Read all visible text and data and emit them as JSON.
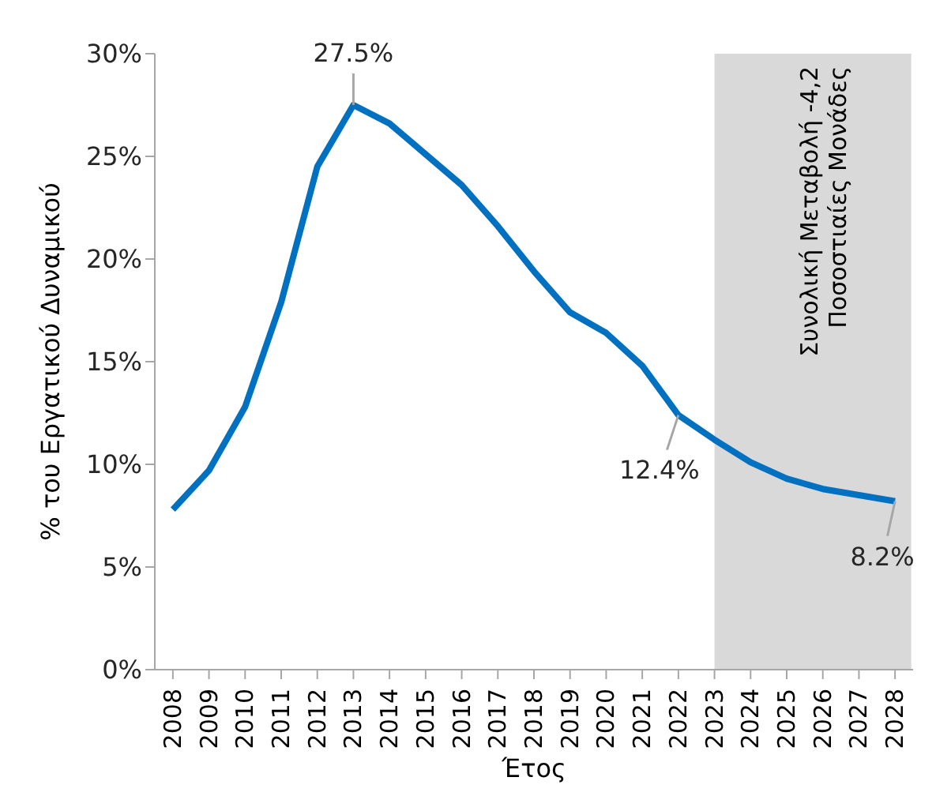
{
  "chart_data": {
    "type": "line",
    "xlabel": "Έτος",
    "ylabel": "% του Εργατικού Δυναμικού",
    "categories": [
      "2008",
      "2009",
      "2010",
      "2011",
      "2012",
      "2013",
      "2014",
      "2015",
      "2016",
      "2017",
      "2018",
      "2019",
      "2020",
      "2021",
      "2022",
      "2023",
      "2024",
      "2025",
      "2026",
      "2027",
      "2028"
    ],
    "series": [
      {
        "color": "#0070c0",
        "values": [
          7.8,
          9.7,
          12.8,
          17.9,
          24.5,
          27.5,
          26.6,
          25.1,
          23.6,
          21.6,
          19.4,
          17.4,
          16.4,
          14.8,
          12.4,
          11.2,
          10.1,
          9.3,
          8.8,
          8.5,
          8.2
        ],
        "value_labels": [
          null,
          null,
          null,
          null,
          null,
          "27.5%",
          null,
          null,
          null,
          null,
          null,
          null,
          null,
          null,
          "12.4%",
          null,
          null,
          null,
          null,
          null,
          "8.2%"
        ]
      }
    ],
    "ylim": [
      0,
      30
    ],
    "yticks": [
      {
        "value": 0,
        "label": "0%"
      },
      {
        "value": 5,
        "label": "5%"
      },
      {
        "value": 10,
        "label": "10%"
      },
      {
        "value": 15,
        "label": "15%"
      },
      {
        "value": 20,
        "label": "20%"
      },
      {
        "value": 25,
        "label": "25%"
      },
      {
        "value": 30,
        "label": "30%"
      }
    ],
    "bands": [
      {
        "axis": "x",
        "from": "2023",
        "to": "2028",
        "label": "Συνολική Μεταβολή -4,2\nΠοσοστιαίες Μονάδες",
        "color": "#d9d9d9"
      }
    ],
    "grid": false,
    "legend": false,
    "marker": "none",
    "line_style": "solid"
  }
}
